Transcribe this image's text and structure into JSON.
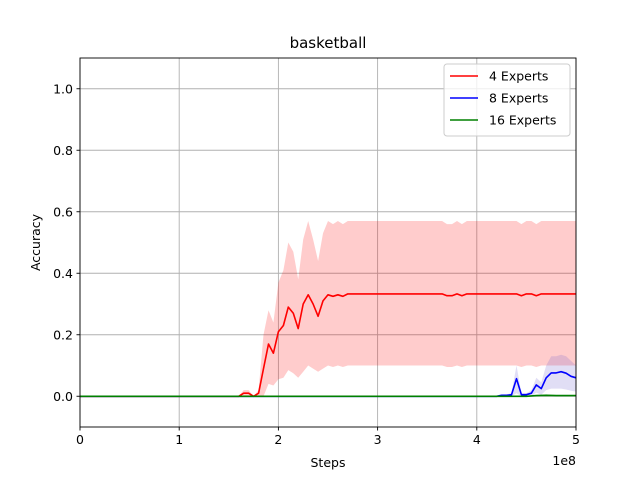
{
  "chart_data": {
    "type": "line",
    "title": "basketball",
    "xlabel": "Steps",
    "ylabel": "Accuracy",
    "x_offset_label": "1e8",
    "xlim": [
      0,
      5
    ],
    "ylim": [
      -0.1,
      1.1
    ],
    "xticks": [
      0,
      1,
      2,
      3,
      4,
      5
    ],
    "xtick_labels": [
      "0",
      "1",
      "2",
      "3",
      "4",
      "5"
    ],
    "yticks": [
      0.0,
      0.2,
      0.4,
      0.6,
      0.8,
      1.0
    ],
    "ytick_labels": [
      "0.0",
      "0.2",
      "0.4",
      "0.6",
      "0.8",
      "1.0"
    ],
    "grid": true,
    "legend_position": "top-right",
    "series": [
      {
        "name": "4 Experts",
        "color": "#ff0000",
        "band_color": "#ff0000",
        "x": [
          0,
          1.6,
          1.65,
          1.7,
          1.75,
          1.8,
          1.85,
          1.9,
          1.95,
          2.0,
          2.05,
          2.1,
          2.15,
          2.2,
          2.25,
          2.3,
          2.35,
          2.4,
          2.45,
          2.5,
          2.55,
          2.6,
          2.65,
          2.7,
          3.0,
          3.6,
          3.65,
          3.7,
          3.75,
          3.8,
          3.85,
          3.9,
          4.0,
          4.4,
          4.45,
          4.5,
          4.55,
          4.6,
          4.65,
          5.0
        ],
        "y": [
          0,
          0,
          0.01,
          0.01,
          0,
          0.01,
          0.09,
          0.17,
          0.14,
          0.21,
          0.23,
          0.29,
          0.27,
          0.22,
          0.3,
          0.33,
          0.3,
          0.26,
          0.31,
          0.33,
          0.325,
          0.33,
          0.325,
          0.333,
          0.333,
          0.333,
          0.333,
          0.327,
          0.327,
          0.333,
          0.327,
          0.333,
          0.333,
          0.333,
          0.327,
          0.333,
          0.333,
          0.327,
          0.333,
          0.333
        ],
        "upper": [
          0,
          0,
          0.02,
          0.02,
          0,
          0.02,
          0.2,
          0.28,
          0.24,
          0.37,
          0.41,
          0.5,
          0.47,
          0.38,
          0.51,
          0.57,
          0.51,
          0.44,
          0.53,
          0.57,
          0.56,
          0.57,
          0.56,
          0.57,
          0.57,
          0.57,
          0.57,
          0.56,
          0.56,
          0.57,
          0.56,
          0.57,
          0.57,
          0.57,
          0.56,
          0.57,
          0.57,
          0.56,
          0.57,
          0.57
        ],
        "lower": [
          0,
          0,
          0,
          0,
          0,
          0,
          0,
          0.04,
          0.035,
          0.055,
          0.06,
          0.085,
          0.075,
          0.06,
          0.08,
          0.1,
          0.09,
          0.08,
          0.09,
          0.1,
          0.095,
          0.1,
          0.095,
          0.1,
          0.1,
          0.1,
          0.1,
          0.095,
          0.095,
          0.1,
          0.095,
          0.1,
          0.1,
          0.1,
          0.095,
          0.1,
          0.1,
          0.095,
          0.1,
          0.1
        ]
      },
      {
        "name": "8 Experts",
        "color": "#0000ff",
        "band_color": "#6a5acd",
        "x": [
          0,
          4.2,
          4.25,
          4.3,
          4.35,
          4.4,
          4.45,
          4.5,
          4.55,
          4.6,
          4.65,
          4.7,
          4.75,
          4.8,
          4.85,
          4.9,
          4.95,
          5.0
        ],
        "y": [
          0,
          0,
          0.003,
          0.003,
          0.005,
          0.057,
          0.005,
          0.005,
          0.01,
          0.037,
          0.025,
          0.06,
          0.076,
          0.076,
          0.08,
          0.075,
          0.065,
          0.06
        ],
        "upper": [
          0,
          0,
          0.006,
          0.006,
          0.01,
          0.1,
          0.01,
          0.01,
          0.02,
          0.06,
          0.045,
          0.1,
          0.13,
          0.13,
          0.135,
          0.13,
          0.115,
          0.1
        ],
        "lower": [
          0,
          0,
          0,
          0,
          0,
          0.01,
          0,
          0,
          0,
          0.012,
          0.005,
          0.02,
          0.025,
          0.025,
          0.025,
          0.022,
          0.018,
          0.015
        ]
      },
      {
        "name": "16 Experts",
        "color": "#008000",
        "band_color": "#008000",
        "x": [
          0,
          4.5,
          4.6,
          4.7,
          4.8,
          5.0
        ],
        "y": [
          0,
          0,
          0.002,
          0.003,
          0.002,
          0.002
        ],
        "upper": [
          0,
          0,
          0.004,
          0.006,
          0.004,
          0.004
        ],
        "lower": [
          0,
          0,
          0,
          0,
          0,
          0
        ]
      }
    ]
  }
}
